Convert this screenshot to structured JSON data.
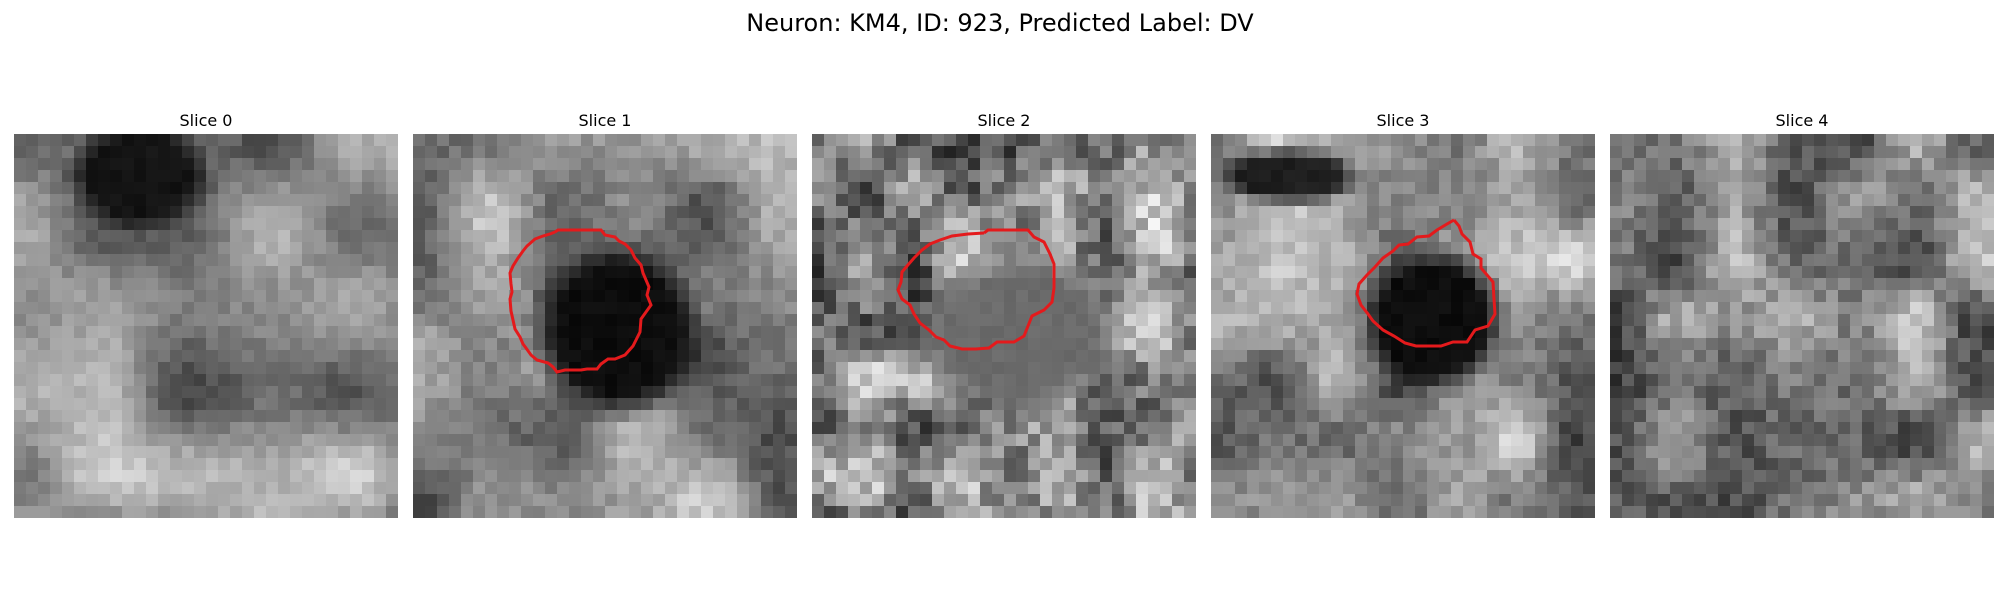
{
  "figure": {
    "title": "Neuron: KM4, ID: 923, Predicted Label: DV",
    "contour_color": "#e41a1c"
  },
  "slices": [
    {
      "title": "Slice 0",
      "has_contour": false
    },
    {
      "title": "Slice 1",
      "has_contour": true
    },
    {
      "title": "Slice 2",
      "has_contour": true
    },
    {
      "title": "Slice 3",
      "has_contour": true
    },
    {
      "title": "Slice 4",
      "has_contour": false
    }
  ]
}
